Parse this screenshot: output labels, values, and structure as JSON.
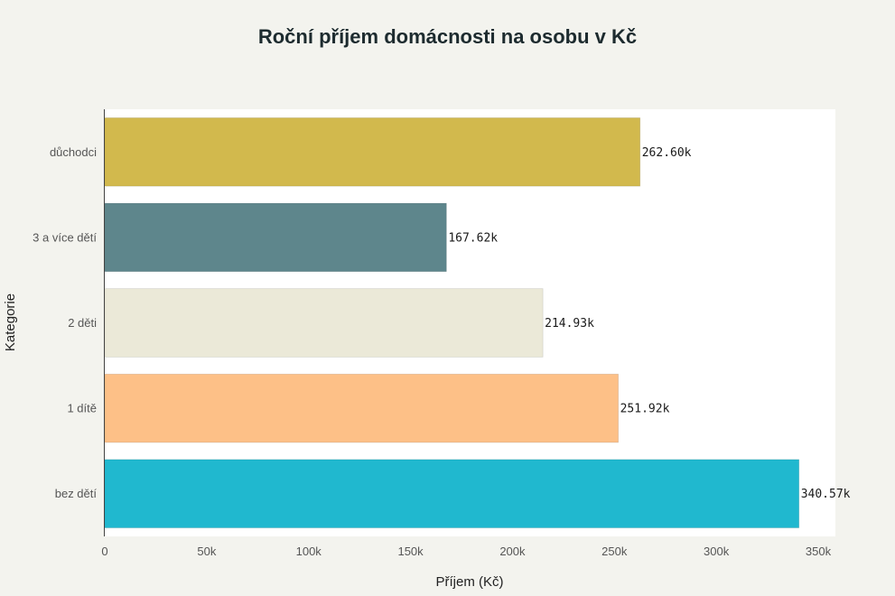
{
  "chart_data": {
    "type": "bar",
    "orientation": "horizontal",
    "title": "Roční příjem domácnosti na osobu v Kč",
    "xlabel": "Příjem (Kč)",
    "ylabel": "Kategorie",
    "categories": [
      "důchodci",
      "3 a více dětí",
      "2 děti",
      "1 dítě",
      "bez dětí"
    ],
    "values": [
      262600,
      167620,
      214930,
      251920,
      340570
    ],
    "data_labels": [
      "262.60k",
      "167.62k",
      "214.93k",
      "251.92k",
      "340.57k"
    ],
    "colors": [
      "#d2b94d",
      "#5e868c",
      "#ebe9d8",
      "#fdc087",
      "#20b8cf"
    ],
    "xlim": [
      0,
      355000
    ],
    "xticks": [
      0,
      50000,
      100000,
      150000,
      200000,
      250000,
      300000,
      350000
    ],
    "xtick_labels": [
      "0",
      "50k",
      "100k",
      "150k",
      "200k",
      "250k",
      "300k",
      "350k"
    ],
    "grid": false,
    "legend": "none"
  }
}
